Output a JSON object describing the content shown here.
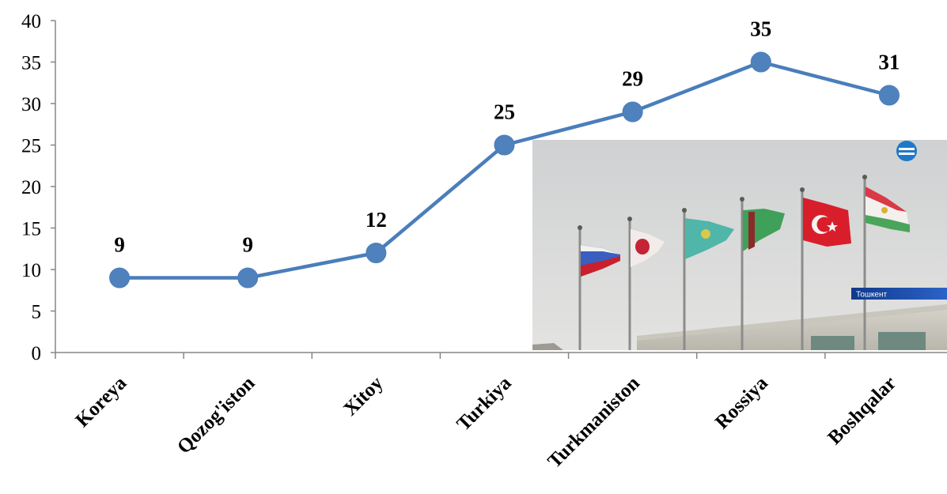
{
  "chart_data": {
    "type": "line",
    "categories": [
      "Koreya",
      "Qozog'iston",
      "Xitoy",
      "Turkiya",
      "Turkmaniston",
      "Rossiya",
      "Boshqalar"
    ],
    "values": [
      9,
      9,
      12,
      25,
      29,
      35,
      31
    ],
    "data_labels": [
      "9",
      "9",
      "12",
      "25",
      "29",
      "35",
      "31"
    ],
    "ylim": [
      0,
      40
    ],
    "yticks": [
      0,
      5,
      10,
      15,
      20,
      25,
      30,
      35,
      40
    ],
    "grid": false,
    "legend": "none",
    "line_color": "#4a7ebb",
    "marker_color": "#4f81bd"
  },
  "inset_photo": {
    "caption": "Тошкент",
    "logo_icon": "tv-channel-logo-icon",
    "flag_icons": [
      "russia-flag-icon",
      "japan-flag-icon",
      "kazakhstan-flag-icon",
      "turkmenistan-flag-icon",
      "turkey-flag-icon",
      "tajikistan-flag-icon"
    ]
  }
}
